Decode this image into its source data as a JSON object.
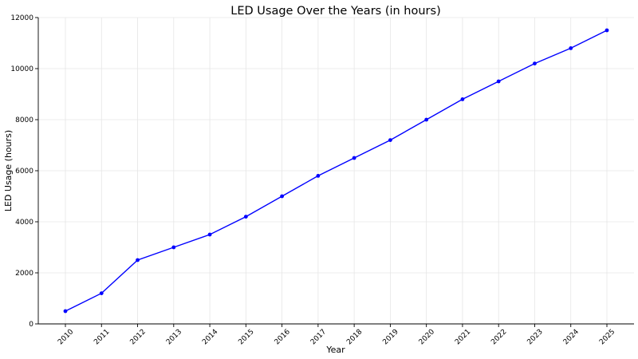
{
  "chart_data": {
    "type": "line",
    "title": "LED Usage Over the Years (in hours)",
    "xlabel": "Year",
    "ylabel": "LED Usage (hours)",
    "x": [
      "2010",
      "2011",
      "2012",
      "2013",
      "2014",
      "2015",
      "2016",
      "2017",
      "2018",
      "2019",
      "2020",
      "2021",
      "2022",
      "2023",
      "2024",
      "2025"
    ],
    "series": [
      {
        "values": [
          500,
          1200,
          2500,
          3000,
          3500,
          4200,
          5000,
          5800,
          6500,
          7200,
          8000,
          8800,
          9500,
          10200,
          10800,
          11500
        ],
        "color": "#0000ff",
        "marker": "circle"
      }
    ],
    "ylim": [
      0,
      12000
    ],
    "yticks": [
      0,
      2000,
      4000,
      6000,
      8000,
      10000,
      12000
    ],
    "grid": true,
    "legend": "none"
  }
}
